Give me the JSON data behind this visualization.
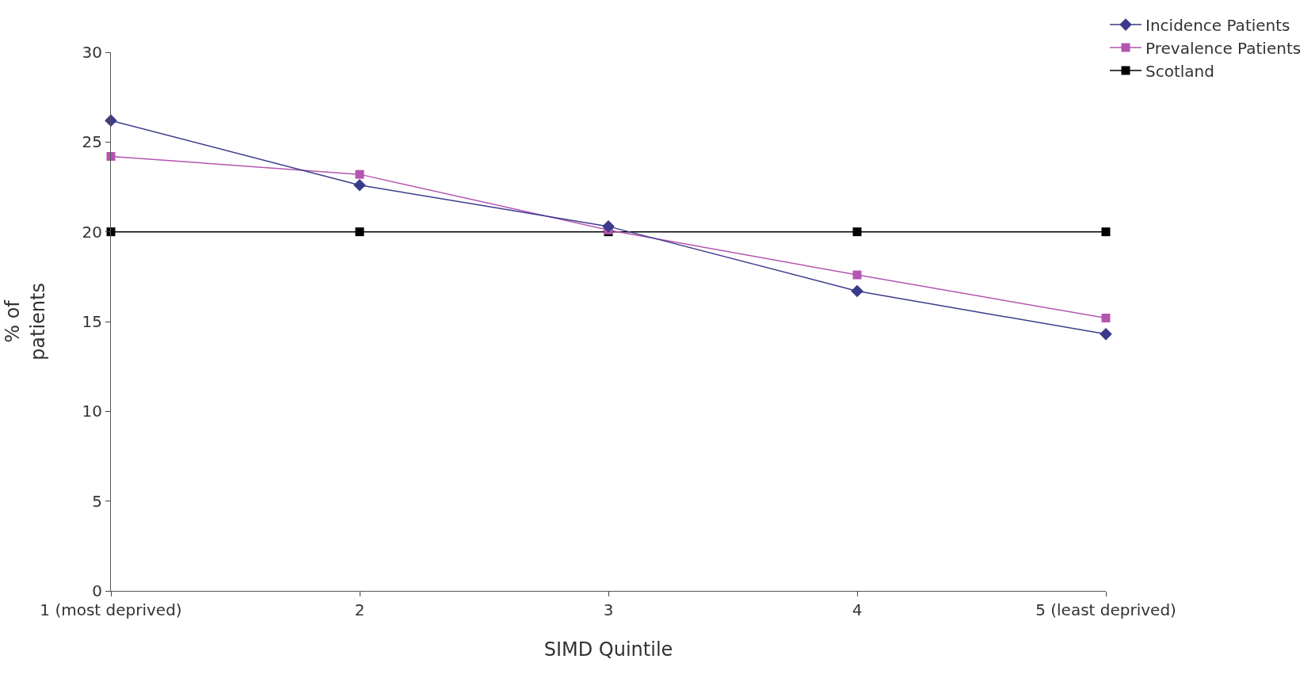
{
  "chart_data": {
    "type": "line",
    "xlabel": "SIMD Quintile",
    "ylabel": "% of patients",
    "categories": [
      "1 (most deprived)",
      "2",
      "3",
      "4",
      "5 (least deprived)"
    ],
    "series": [
      {
        "name": "Incidence Patients",
        "color": "#3b3b8c",
        "marker": "diamond",
        "values": [
          26.2,
          22.6,
          20.3,
          16.7,
          14.3
        ]
      },
      {
        "name": "Prevalence Patients",
        "color": "#b455b0",
        "marker": "square",
        "values": [
          24.2,
          23.2,
          20.1,
          17.6,
          15.2
        ]
      },
      {
        "name": "Scotland",
        "color": "#000000",
        "marker": "square",
        "values": [
          20,
          20,
          20,
          20,
          20
        ]
      }
    ],
    "ylim": [
      0,
      30
    ],
    "yticks": [
      0,
      5,
      10,
      15,
      20,
      25,
      30
    ],
    "grid": false,
    "legend": "top right",
    "line_style": "solid"
  }
}
